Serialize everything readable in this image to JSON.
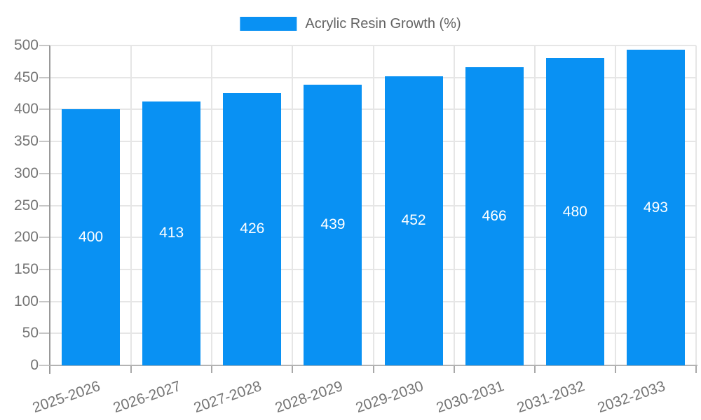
{
  "chart_data": {
    "type": "bar",
    "title": "",
    "xlabel": "",
    "ylabel": "",
    "legend": {
      "position": "top",
      "entries": [
        "Acrylic Resin Growth (%)"
      ]
    },
    "categories": [
      "2025-2026",
      "2026-2027",
      "2027-2028",
      "2028-2029",
      "2029-2030",
      "2030-2031",
      "2031-2032",
      "2032-2033"
    ],
    "series": [
      {
        "name": "Acrylic Resin Growth (%)",
        "values": [
          400,
          413,
          426,
          439,
          452,
          466,
          480,
          493
        ],
        "color": "#0991F3"
      }
    ],
    "ylim": [
      0,
      500
    ],
    "ytick_step": 50,
    "yticks": [
      0,
      50,
      100,
      150,
      200,
      250,
      300,
      350,
      400,
      450,
      500
    ],
    "grid": true,
    "data_labels": {
      "visible": true,
      "position": "center",
      "color": "#ffffff"
    }
  },
  "colors": {
    "bar": "#0991F3",
    "grid": "#e6e6e6",
    "axis_y": "#999999",
    "baseline": "#b3b3b3",
    "ytick": "#c6c6c6",
    "xtick": "#a9a9a9",
    "axis_label": "#757575",
    "legend_text": "#636363",
    "bar_label": "#ffffff",
    "background": "#ffffff"
  }
}
